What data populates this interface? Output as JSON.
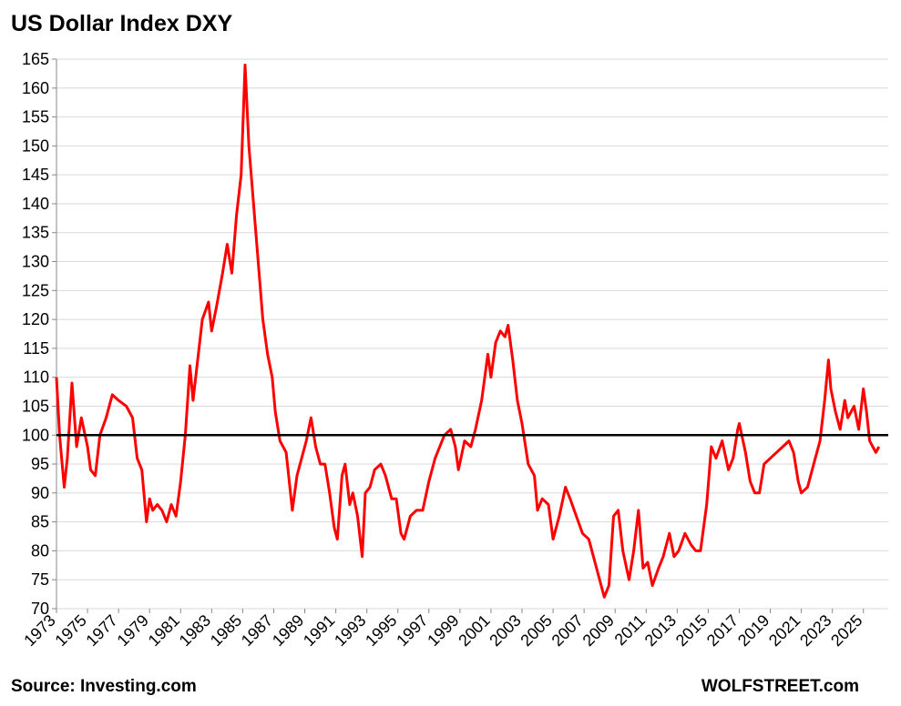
{
  "chart_data": {
    "type": "line",
    "title": "US Dollar Index DXY",
    "source": "Source: Investing.com",
    "credit": "WOLFSTREET.com",
    "color": "#ff0000",
    "reference_line": 100,
    "grid": true,
    "x": [
      1973.0,
      1973.2,
      1973.5,
      1973.7,
      1974.0,
      1974.3,
      1974.6,
      1975.0,
      1975.2,
      1975.5,
      1975.8,
      1976.2,
      1976.6,
      1977.0,
      1977.5,
      1977.9,
      1978.2,
      1978.5,
      1978.8,
      1979.0,
      1979.2,
      1979.5,
      1979.8,
      1980.1,
      1980.4,
      1980.7,
      1981.0,
      1981.3,
      1981.6,
      1981.8,
      1982.1,
      1982.4,
      1982.8,
      1983.0,
      1983.3,
      1983.7,
      1984.0,
      1984.3,
      1984.6,
      1984.9,
      1985.1,
      1985.15,
      1985.4,
      1985.7,
      1986.0,
      1986.3,
      1986.6,
      1986.9,
      1987.1,
      1987.4,
      1987.8,
      1988.0,
      1988.2,
      1988.5,
      1988.8,
      1989.1,
      1989.4,
      1989.7,
      1990.0,
      1990.3,
      1990.6,
      1990.9,
      1991.1,
      1991.4,
      1991.6,
      1991.9,
      1992.1,
      1992.4,
      1992.7,
      1992.9,
      1993.2,
      1993.5,
      1993.9,
      1994.2,
      1994.6,
      1994.9,
      1995.2,
      1995.4,
      1995.8,
      1996.2,
      1996.6,
      1997.0,
      1997.4,
      1997.7,
      1998.0,
      1998.4,
      1998.7,
      1998.9,
      1999.3,
      1999.7,
      2000.0,
      2000.4,
      2000.8,
      2001.0,
      2001.3,
      2001.6,
      2001.9,
      2002.1,
      2002.4,
      2002.7,
      2003.0,
      2003.4,
      2003.8,
      2004.0,
      2004.3,
      2004.7,
      2005.0,
      2005.4,
      2005.8,
      2006.1,
      2006.5,
      2006.9,
      2007.3,
      2007.7,
      2008.0,
      2008.3,
      2008.6,
      2008.9,
      2009.2,
      2009.5,
      2009.9,
      2010.2,
      2010.5,
      2010.8,
      2011.1,
      2011.4,
      2011.8,
      2012.1,
      2012.5,
      2012.8,
      2013.1,
      2013.5,
      2013.9,
      2014.2,
      2014.5,
      2014.9,
      2015.2,
      2015.5,
      2015.9,
      2016.3,
      2016.6,
      2016.9,
      2017.0,
      2017.4,
      2017.7,
      2018.0,
      2018.3,
      2018.6,
      2019.0,
      2019.4,
      2019.8,
      2020.2,
      2020.5,
      2020.8,
      2021.0,
      2021.4,
      2021.8,
      2022.2,
      2022.5,
      2022.75,
      2022.9,
      2023.2,
      2023.5,
      2023.8,
      2024.0,
      2024.4,
      2024.7,
      2025.0,
      2025.2,
      2025.4,
      2025.6,
      2025.8,
      2026.0
    ],
    "values": [
      110,
      100,
      91,
      96,
      109,
      98,
      103,
      98,
      94,
      93,
      100,
      103,
      107,
      106,
      105,
      103,
      96,
      94,
      85,
      89,
      87,
      88,
      87,
      85,
      88,
      86,
      92,
      100,
      112,
      106,
      113,
      120,
      123,
      118,
      122,
      128,
      133,
      128,
      138,
      145,
      160,
      164,
      150,
      140,
      130,
      120,
      114,
      110,
      104,
      99,
      97,
      92,
      87,
      93,
      96,
      99,
      103,
      98,
      95,
      95,
      90,
      84,
      82,
      93,
      95,
      88,
      90,
      86,
      79,
      90,
      91,
      94,
      95,
      93,
      89,
      89,
      83,
      82,
      86,
      87,
      87,
      92,
      96,
      98,
      100,
      101,
      98,
      94,
      99,
      98,
      101,
      106,
      114,
      110,
      116,
      118,
      117,
      119,
      113,
      106,
      102,
      95,
      93,
      87,
      89,
      88,
      82,
      86,
      91,
      89,
      86,
      83,
      82,
      78,
      75,
      72,
      74,
      86,
      87,
      80,
      75,
      80,
      87,
      77,
      78,
      74,
      77,
      79,
      83,
      79,
      80,
      83,
      81,
      80,
      80,
      88,
      98,
      96,
      99,
      94,
      96,
      101,
      102,
      97,
      92,
      90,
      90,
      95,
      96,
      97,
      98,
      99,
      97,
      92,
      90,
      91,
      95,
      99,
      106,
      113,
      108,
      104,
      101,
      106,
      103,
      105,
      101,
      108,
      104,
      99,
      98,
      97,
      98
    ],
    "xlim": [
      1973,
      2026.6
    ],
    "xticks": [
      1973,
      1975,
      1977,
      1979,
      1981,
      1983,
      1985,
      1987,
      1989,
      1991,
      1993,
      1995,
      1997,
      1999,
      2001,
      2003,
      2005,
      2007,
      2009,
      2011,
      2013,
      2015,
      2017,
      2019,
      2021,
      2023,
      2025
    ],
    "ylim": [
      70,
      165
    ],
    "yticks": [
      70,
      75,
      80,
      85,
      90,
      95,
      100,
      105,
      110,
      115,
      120,
      125,
      130,
      135,
      140,
      145,
      150,
      155,
      160,
      165
    ]
  }
}
